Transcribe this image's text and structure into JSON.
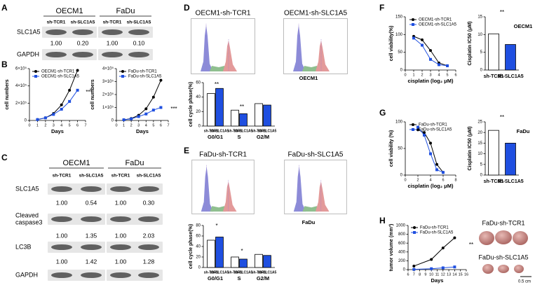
{
  "panel_labels": [
    "A",
    "B",
    "C",
    "D",
    "E",
    "F",
    "G",
    "H"
  ],
  "blot_a": {
    "groups": [
      {
        "name": "OECM1",
        "lanes": [
          "sh-TCR1",
          "sh-SLC1A5"
        ]
      },
      {
        "name": "FaDu",
        "lanes": [
          "sh-TCR1",
          "sh-SLC1A5"
        ]
      }
    ],
    "rows": [
      {
        "label": "SLC1A5",
        "quant": [
          "1.00",
          "0.20",
          "1.00",
          "0.10"
        ]
      },
      {
        "label": "GAPDH"
      }
    ]
  },
  "blot_c": {
    "groups": [
      {
        "name": "OECM1",
        "lanes": [
          "sh-TCR1",
          "sh-SLC1A5"
        ]
      },
      {
        "name": "FaDu",
        "lanes": [
          "sh-TCR1",
          "sh-SLC1A5"
        ]
      }
    ],
    "rows": [
      {
        "label": "SLC1A5",
        "quant": [
          "1.00",
          "0.54",
          "1.00",
          "0.30"
        ]
      },
      {
        "label": [
          "Cleaved",
          "caspase3"
        ],
        "quant": [
          "1.00",
          "1.35",
          "1.00",
          "2.03"
        ]
      },
      {
        "label": "LC3B",
        "quant": [
          "1.00",
          "1.42",
          "1.00",
          "1.28"
        ]
      },
      {
        "label": "GAPDH"
      }
    ]
  },
  "flow_d": [
    "OECM1-sh-TCR1",
    "OECM1-sh-SLC1A5"
  ],
  "flow_e": [
    "FaDu-sh-TCR1",
    "FaDu-sh-SLC1A5"
  ],
  "xenograft": {
    "labels": [
      "FaDu-sh-TCR1",
      "FaDu-sh-SLC1A5"
    ],
    "scale": "0.5 cm"
  },
  "chart_data": [
    {
      "type": "line",
      "ylabel": "cell numbers",
      "xlabel": "Days",
      "x": [
        1,
        2,
        3,
        4,
        5,
        6
      ],
      "xlim": [
        0,
        7
      ],
      "xticks": [
        0,
        1,
        2,
        3,
        4,
        5,
        6,
        7
      ],
      "ylim": [
        0,
        600000
      ],
      "yticks": [
        0,
        {
          "value": 200000,
          "label": "2×10⁵"
        },
        {
          "value": 400000,
          "label": "4×10⁵"
        },
        {
          "value": 600000,
          "label": "6×10⁵"
        }
      ],
      "series": [
        {
          "name": "OECM1-sh-TCR1",
          "color": "#000000",
          "marker": "circle",
          "values": [
            10000,
            30000,
            80000,
            180000,
            350000,
            580000
          ]
        },
        {
          "name": "OECM1-sh-SLC1A5",
          "color": "#1f4fe0",
          "marker": "square",
          "values": [
            10000,
            30000,
            70000,
            130000,
            220000,
            350000
          ]
        }
      ],
      "annotations": [
        "***"
      ]
    },
    {
      "type": "line",
      "ylabel": "cell numbers",
      "xlabel": "Days",
      "x": [
        1,
        2,
        3,
        4,
        5,
        6
      ],
      "xlim": [
        0,
        7
      ],
      "xticks": [
        0,
        1,
        2,
        3,
        4,
        5,
        6,
        7
      ],
      "ylim": [
        0,
        400000
      ],
      "yticks": [
        0,
        {
          "value": 100000,
          "label": "1×10⁵"
        },
        {
          "value": 200000,
          "label": "2×10⁵"
        },
        {
          "value": 300000,
          "label": "3×10⁵"
        },
        {
          "value": 400000,
          "label": "4×10⁵"
        }
      ],
      "series": [
        {
          "name": "FaDu-sh-TCR1",
          "color": "#000000",
          "marker": "circle",
          "values": [
            5000,
            15000,
            40000,
            90000,
            180000,
            310000
          ]
        },
        {
          "name": "FaDu-sh-SLC1A5",
          "color": "#1f4fe0",
          "marker": "square",
          "values": [
            5000,
            12000,
            30000,
            50000,
            80000,
            100000
          ]
        }
      ],
      "annotations": [
        "***"
      ]
    },
    {
      "type": "bar",
      "title": "OECM1",
      "ylabel": "cell cycle phase(%)",
      "categories": [
        "G0/G1",
        "S",
        "G2/M"
      ],
      "ylim": [
        0,
        60
      ],
      "yticks": [
        0,
        20,
        40,
        60
      ],
      "series": [
        {
          "name": "sh-TCR1",
          "color": "#ffffff",
          "values": [
            45,
            22,
            31
          ]
        },
        {
          "name": "sh-SLC1A5",
          "color": "#1f4fe0",
          "values": [
            52,
            17,
            29
          ]
        }
      ],
      "annotations": [
        "**",
        "**"
      ]
    },
    {
      "type": "bar",
      "title": "FaDu",
      "ylabel": "cell cycle phase(%)",
      "categories": [
        "G0/G1",
        "S",
        "G2/M"
      ],
      "ylim": [
        0,
        80
      ],
      "yticks": [
        0,
        20,
        40,
        60,
        80
      ],
      "series": [
        {
          "name": "sh-TCR1",
          "color": "#ffffff",
          "values": [
            52,
            20,
            25
          ]
        },
        {
          "name": "sh-SLC1A5",
          "color": "#1f4fe0",
          "values": [
            58,
            16,
            23
          ]
        }
      ],
      "annotations": [
        "*",
        "*"
      ]
    },
    {
      "type": "line",
      "ylabel": "cell viability(%)",
      "xlabel": "cisplatin (log₂ μM)",
      "x": [
        1,
        2,
        3,
        4,
        5
      ],
      "xlim": [
        0,
        6
      ],
      "xticks": [
        0,
        1,
        2,
        3,
        4,
        5,
        6
      ],
      "ylim": [
        0,
        150
      ],
      "yticks": [
        0,
        50,
        100,
        150
      ],
      "series": [
        {
          "name": "OECM1-sh-TCR1",
          "color": "#000000",
          "marker": "circle",
          "values": [
            95,
            85,
            55,
            20,
            12
          ]
        },
        {
          "name": "OECM1-sh-SLC1A5",
          "color": "#1f4fe0",
          "marker": "square",
          "values": [
            90,
            70,
            30,
            15,
            12
          ]
        }
      ],
      "annotations": []
    },
    {
      "type": "bar",
      "title": "OECM1",
      "ylabel": "Cisplatin IC50 (μM)",
      "categories": [
        "sh-TCR1",
        "sh-SLC1A5"
      ],
      "values": [
        10.2,
        7.2
      ],
      "colors": [
        "#ffffff",
        "#1f4fe0"
      ],
      "ylim": [
        0,
        15
      ],
      "yticks": [
        0,
        5,
        10,
        15
      ],
      "annotations": [
        "**"
      ]
    },
    {
      "type": "line",
      "ylabel": "cell viability (%)",
      "xlabel": "cisplatin (log₂ μM)",
      "x": [
        2,
        3,
        4,
        5,
        6
      ],
      "xlim": [
        0,
        8
      ],
      "xticks": [
        0,
        2,
        4,
        6,
        8
      ],
      "ylim": [
        0,
        100
      ],
      "yticks": [
        0,
        50,
        100
      ],
      "series": [
        {
          "name": "FaDu-sh-TCR1",
          "color": "#000000",
          "marker": "circle",
          "values": [
            85,
            80,
            60,
            20,
            5
          ]
        },
        {
          "name": "FaDu-sh-SLC1A5",
          "color": "#1f4fe0",
          "marker": "square",
          "values": [
            90,
            75,
            40,
            10,
            5
          ]
        }
      ],
      "annotations": []
    },
    {
      "type": "bar",
      "title": "FaDu",
      "ylabel": "Cisplatin IC50 (μM)",
      "categories": [
        "sh-TCR1",
        "sh-SLC1A5"
      ],
      "values": [
        21,
        15
      ],
      "colors": [
        "#ffffff",
        "#1f4fe0"
      ],
      "ylim": [
        0,
        25
      ],
      "yticks": [
        0,
        5,
        10,
        15,
        20,
        25
      ],
      "annotations": [
        "**"
      ]
    },
    {
      "type": "line",
      "ylabel": "tumor volume (mm³)",
      "xlabel": "Days",
      "x": [
        7,
        10,
        12,
        14
      ],
      "xlim": [
        6,
        16
      ],
      "xticks": [
        6,
        7,
        8,
        9,
        10,
        11,
        12,
        13,
        14,
        15,
        16
      ],
      "ylim": [
        0,
        1000
      ],
      "yticks": [
        0,
        200,
        400,
        600,
        800,
        1000
      ],
      "series": [
        {
          "name": "FaDu-sh-TCR1",
          "color": "#000000",
          "marker": "circle",
          "values": [
            80,
            230,
            490,
            720
          ]
        },
        {
          "name": "FaDu-sh-SLC1A5",
          "color": "#1f4fe0",
          "marker": "square",
          "values": [
            5,
            20,
            40,
            60
          ]
        }
      ],
      "annotations": [
        "**"
      ]
    }
  ]
}
